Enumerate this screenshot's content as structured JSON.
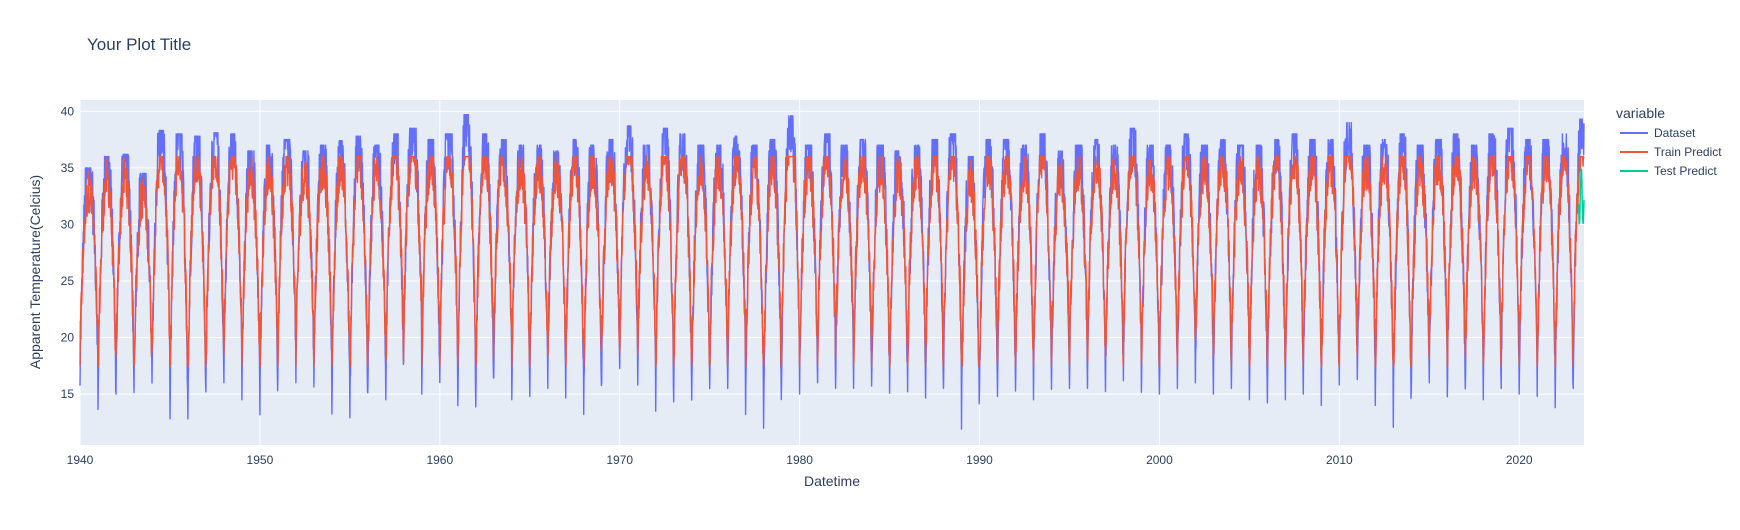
{
  "chart_data": {
    "type": "line",
    "title": "Your Plot Title",
    "xlabel": "Datetime",
    "ylabel": "Apparent Temperature(Celcius)",
    "xlim": [
      1940,
      2023.6
    ],
    "ylim": [
      10.5,
      41
    ],
    "x_ticks": [
      {
        "value": 1940,
        "label": "1940"
      },
      {
        "value": 1950,
        "label": "1950"
      },
      {
        "value": 1960,
        "label": "1960"
      },
      {
        "value": 1970,
        "label": "1970"
      },
      {
        "value": 1980,
        "label": "1980"
      },
      {
        "value": 1990,
        "label": "1990"
      },
      {
        "value": 2000,
        "label": "2000"
      },
      {
        "value": 2010,
        "label": "2010"
      },
      {
        "value": 2020,
        "label": "2020"
      }
    ],
    "y_ticks": [
      {
        "value": 15,
        "label": "15"
      },
      {
        "value": 20,
        "label": "20"
      },
      {
        "value": 25,
        "label": "25"
      },
      {
        "value": 30,
        "label": "30"
      },
      {
        "value": 35,
        "label": "35"
      },
      {
        "value": 40,
        "label": "40"
      }
    ],
    "grid": true,
    "legend": {
      "title": "variable",
      "position": "right"
    },
    "series": [
      {
        "name": "Dataset",
        "color": "#636efa",
        "description_values": "annual cycle, summer peaks ~35-39, winter troughs ~12-19",
        "annual_max": [
          35.0,
          36.0,
          36.2,
          34.5,
          38.3,
          38.0,
          37.8,
          38.1,
          38.0,
          36.5,
          37.0,
          37.5,
          36.5,
          37.0,
          37.4,
          37.8,
          37.0,
          38.0,
          38.5,
          37.5,
          38.0,
          39.7,
          38.0,
          37.5,
          37.0,
          37.0,
          36.5,
          37.5,
          37.0,
          37.5,
          38.7,
          37.0,
          38.5,
          38.0,
          37.0,
          37.0,
          37.8,
          37.0,
          37.5,
          39.6,
          37.0,
          38.0,
          37.0,
          37.5,
          37.0,
          36.5,
          37.0,
          37.5,
          38.0,
          36.0,
          37.5,
          37.5,
          37.0,
          38.0,
          36.5,
          37.0,
          37.5,
          37.0,
          38.5,
          37.0,
          37.0,
          38.0,
          37.0,
          37.5,
          37.0,
          37.0,
          37.5,
          38.0,
          37.5,
          37.5,
          39.0,
          37.0,
          37.5,
          38.0,
          37.0,
          37.5,
          38.0,
          37.0,
          38.0,
          38.5,
          37.5,
          37.5,
          38.0,
          39.3
        ],
        "annual_min": [
          15.5,
          13.5,
          15.0,
          15.0,
          15.5,
          12.2,
          12.8,
          14.5,
          16.0,
          14.5,
          13.0,
          16.5,
          16.0,
          15.5,
          13.0,
          12.7,
          15.0,
          14.5,
          18.5,
          15.0,
          15.5,
          13.3,
          13.2,
          16.5,
          14.5,
          14.8,
          15.5,
          14.5,
          13.2,
          16.0,
          16.5,
          15.8,
          13.5,
          14.0,
          14.0,
          15.0,
          15.5,
          13.2,
          11.9,
          16.0,
          15.0,
          16.0,
          15.5,
          15.5,
          15.0,
          14.5,
          15.2,
          14.5,
          15.0,
          11.9,
          14.5,
          14.8,
          15.0,
          14.5,
          15.3,
          15.5,
          15.5,
          15.0,
          16.0,
          14.5,
          15.0,
          15.5,
          16.0,
          15.0,
          15.5,
          14.5,
          14.0,
          14.5,
          15.0,
          14.0,
          15.8,
          15.5,
          14.0,
          11.9,
          15.2,
          16.0,
          14.5,
          15.0,
          14.5,
          15.5,
          15.0,
          14.8,
          13.8,
          15.5
        ]
      },
      {
        "name": "Train Predict",
        "color": "#ef553b",
        "description_values": "annual cycle, summer peaks ~33-36, winter troughs ~16-20",
        "annual_max": 35.0,
        "annual_min": 17.5
      },
      {
        "name": "Test Predict",
        "color": "#00cc96",
        "description_values": "visible only at the very end of the series",
        "annual_max": 35.0,
        "annual_min": 30.0
      }
    ]
  }
}
